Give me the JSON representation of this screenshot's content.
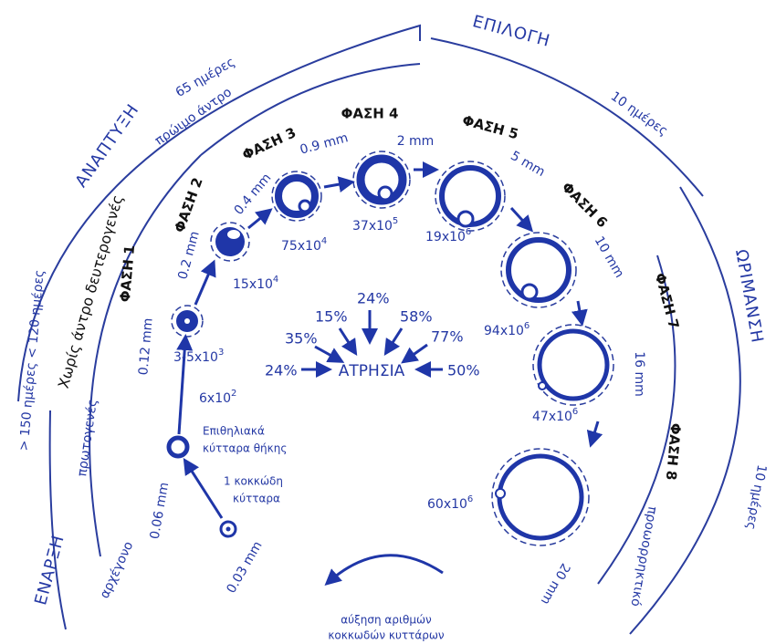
{
  "stages": [
    "ΕΝΑΡΞΗ",
    "ΑΝΑΠΤΥΞΗ",
    "ΕΠΙΛΟΓΗ",
    "ΩΡΙΜΑΝΣΗ"
  ],
  "durations": [
    "> 150 ημέρες < 120 ημέρες",
    "65 ημέρες",
    "10 ημέρες",
    "10 ημέρες"
  ],
  "antrum": [
    "Χωρίς άντρο δευτερογενές",
    "πρώιμο άντρο"
  ],
  "follicle_types": [
    "αρχέγονο",
    "πρωτογενές",
    "προωορρηκτικό"
  ],
  "phases": [
    "ΦΑΣΗ 1",
    "ΦΑΣΗ 2",
    "ΦΑΣΗ 3",
    "ΦΑΣΗ 4",
    "ΦΑΣΗ 5",
    "ΦΑΣΗ 6",
    "ΦΑΣΗ 7",
    "ΦΑΣΗ 8"
  ],
  "sizes": [
    "0.03 mm",
    "0.06 mm",
    "0.12 mm",
    "0.2 mm",
    "0.4 mm",
    "0.9 mm",
    "2 mm",
    "5 mm",
    "10 mm",
    "16 mm",
    "20 mm"
  ],
  "cell_counts": [
    {
      "base": "6x10",
      "exp": "2"
    },
    {
      "base": "3-5x10",
      "exp": "3"
    },
    {
      "base": "15x10",
      "exp": "4"
    },
    {
      "base": "75x10",
      "exp": "4"
    },
    {
      "base": "37x10",
      "exp": "5"
    },
    {
      "base": "19x10",
      "exp": "6"
    },
    {
      "base": "94x10",
      "exp": "6"
    },
    {
      "base": "47x10",
      "exp": "6"
    },
    {
      "base": "60x10",
      "exp": "6"
    }
  ],
  "atresia": {
    "label": "ΑΤΡΗΣΙΑ",
    "rates": [
      "24%",
      "35%",
      "15%",
      "24%",
      "58%",
      "77%",
      "50%"
    ]
  },
  "notes": {
    "theca": [
      "Επιθηλιακά",
      "κύτταρα θήκης"
    ],
    "granulosa": [
      "1 κοκκώδη",
      "κύτταρα"
    ],
    "growth": [
      "αύξηση αριθμών",
      "κοκκωδών κυττάρων"
    ]
  }
}
